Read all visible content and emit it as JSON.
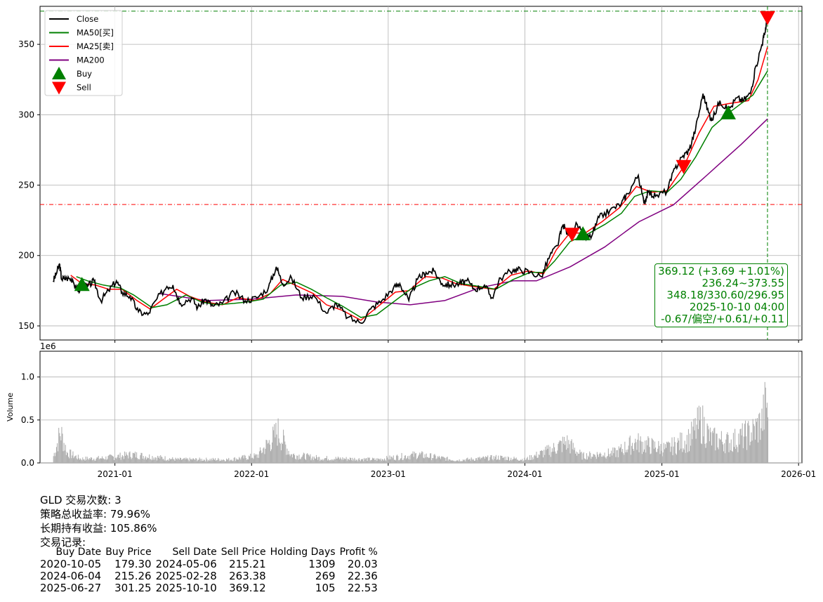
{
  "chart_data": [
    {
      "type": "line",
      "panel": "price",
      "ylim": [
        140,
        377
      ],
      "yticks": [
        150,
        200,
        250,
        300,
        350
      ],
      "grid": true,
      "legend_placement": "top-left",
      "legend": [
        "Close",
        "MA50[买]",
        "MA25[卖]",
        "MA200",
        "Buy",
        "Sell"
      ],
      "series": [
        {
          "name": "Close",
          "color": "#000000",
          "points": [
            [
              "2020-07-20",
              182
            ],
            [
              "2020-07-27",
              186
            ],
            [
              "2020-08-06",
              194
            ],
            [
              "2020-08-12",
              183
            ],
            [
              "2020-08-25",
              184
            ],
            [
              "2020-09-10",
              183
            ],
            [
              "2020-09-25",
              174
            ],
            [
              "2020-10-05",
              179
            ],
            [
              "2020-10-20",
              178
            ],
            [
              "2020-11-06",
              182
            ],
            [
              "2020-11-24",
              168
            ],
            [
              "2020-12-15",
              175
            ],
            [
              "2021-01-05",
              182
            ],
            [
              "2021-01-20",
              174
            ],
            [
              "2021-02-10",
              171
            ],
            [
              "2021-03-05",
              160
            ],
            [
              "2021-03-30",
              158
            ],
            [
              "2021-04-20",
              168
            ],
            [
              "2021-05-20",
              178
            ],
            [
              "2021-06-05",
              179
            ],
            [
              "2021-06-25",
              166
            ],
            [
              "2021-07-25",
              170
            ],
            [
              "2021-08-10",
              163
            ],
            [
              "2021-08-30",
              169
            ],
            [
              "2021-09-20",
              164
            ],
            [
              "2021-10-15",
              166
            ],
            [
              "2021-11-15",
              174
            ],
            [
              "2021-12-15",
              168
            ],
            [
              "2022-01-15",
              170
            ],
            [
              "2022-02-15",
              177
            ],
            [
              "2022-03-08",
              192
            ],
            [
              "2022-03-25",
              180
            ],
            [
              "2022-04-18",
              184
            ],
            [
              "2022-05-15",
              170
            ],
            [
              "2022-06-15",
              172
            ],
            [
              "2022-07-20",
              159
            ],
            [
              "2022-08-15",
              166
            ],
            [
              "2022-09-15",
              156
            ],
            [
              "2022-10-20",
              152
            ],
            [
              "2022-11-15",
              162
            ],
            [
              "2022-12-15",
              168
            ],
            [
              "2023-01-15",
              177
            ],
            [
              "2023-02-01",
              180
            ],
            [
              "2023-02-25",
              168
            ],
            [
              "2023-03-20",
              183
            ],
            [
              "2023-04-12",
              188
            ],
            [
              "2023-05-03",
              189
            ],
            [
              "2023-05-25",
              180
            ],
            [
              "2023-06-15",
              179
            ],
            [
              "2023-07-10",
              180
            ],
            [
              "2023-07-30",
              182
            ],
            [
              "2023-08-20",
              176
            ],
            [
              "2023-09-15",
              179
            ],
            [
              "2023-10-05",
              170
            ],
            [
              "2023-10-28",
              184
            ],
            [
              "2023-12-01",
              190
            ],
            [
              "2023-12-20",
              190
            ],
            [
              "2024-01-15",
              188
            ],
            [
              "2024-02-14",
              185
            ],
            [
              "2024-03-08",
              200
            ],
            [
              "2024-03-28",
              207
            ],
            [
              "2024-04-12",
              222
            ],
            [
              "2024-04-25",
              215
            ],
            [
              "2024-05-20",
              222
            ],
            [
              "2024-06-07",
              212
            ],
            [
              "2024-06-28",
              214
            ],
            [
              "2024-07-17",
              227
            ],
            [
              "2024-08-15",
              232
            ],
            [
              "2024-09-15",
              237
            ],
            [
              "2024-10-01",
              244
            ],
            [
              "2024-10-30",
              257
            ],
            [
              "2024-11-14",
              237
            ],
            [
              "2024-11-25",
              245
            ],
            [
              "2024-12-15",
              242
            ],
            [
              "2025-01-15",
              246
            ],
            [
              "2025-02-05",
              262
            ],
            [
              "2025-02-24",
              270
            ],
            [
              "2025-03-15",
              275
            ],
            [
              "2025-04-01",
              290
            ],
            [
              "2025-04-21",
              315
            ],
            [
              "2025-05-05",
              302
            ],
            [
              "2025-05-15",
              296
            ],
            [
              "2025-06-05",
              310
            ],
            [
              "2025-06-27",
              303
            ],
            [
              "2025-07-20",
              312
            ],
            [
              "2025-08-05",
              310
            ],
            [
              "2025-08-25",
              315
            ],
            [
              "2025-09-10",
              335
            ],
            [
              "2025-09-25",
              350
            ],
            [
              "2025-10-03",
              358
            ],
            [
              "2025-10-10",
              369.12
            ]
          ]
        },
        {
          "name": "MA50[买]",
          "color": "#008000",
          "points": [
            [
              "2020-09-20",
              185
            ],
            [
              "2020-10-20",
              182
            ],
            [
              "2020-12-01",
              179
            ],
            [
              "2021-01-15",
              177
            ],
            [
              "2021-02-20",
              172
            ],
            [
              "2021-04-10",
              163
            ],
            [
              "2021-05-20",
              165
            ],
            [
              "2021-07-10",
              172
            ],
            [
              "2021-08-20",
              167
            ],
            [
              "2021-10-01",
              165
            ],
            [
              "2021-11-15",
              166
            ],
            [
              "2021-12-20",
              167
            ],
            [
              "2022-02-01",
              169
            ],
            [
              "2022-03-20",
              179
            ],
            [
              "2022-05-01",
              181
            ],
            [
              "2022-06-10",
              176
            ],
            [
              "2022-07-20",
              170
            ],
            [
              "2022-09-01",
              164
            ],
            [
              "2022-10-20",
              156
            ],
            [
              "2022-12-01",
              158
            ],
            [
              "2023-01-15",
              167
            ],
            [
              "2023-03-01",
              176
            ],
            [
              "2023-04-20",
              182
            ],
            [
              "2023-06-01",
              185
            ],
            [
              "2023-07-15",
              180
            ],
            [
              "2023-09-01",
              178
            ],
            [
              "2023-10-15",
              176
            ],
            [
              "2023-12-01",
              183
            ],
            [
              "2024-01-15",
              188
            ],
            [
              "2024-02-20",
              188
            ],
            [
              "2024-03-20",
              196
            ],
            [
              "2024-05-01",
              210
            ],
            [
              "2024-06-15",
              215
            ],
            [
              "2024-08-01",
              222
            ],
            [
              "2024-09-15",
              230
            ],
            [
              "2024-10-20",
              242
            ],
            [
              "2024-12-01",
              246
            ],
            [
              "2025-01-15",
              245
            ],
            [
              "2025-02-20",
              254
            ],
            [
              "2025-04-01",
              270
            ],
            [
              "2025-05-15",
              291
            ],
            [
              "2025-06-27",
              301
            ],
            [
              "2025-08-01",
              308
            ],
            [
              "2025-09-01",
              314
            ],
            [
              "2025-10-10",
              331
            ]
          ]
        },
        {
          "name": "MA25[卖]",
          "color": "#ff0000",
          "points": [
            [
              "2020-09-05",
              186
            ],
            [
              "2020-10-05",
              180
            ],
            [
              "2020-11-10",
              179
            ],
            [
              "2020-12-15",
              176
            ],
            [
              "2021-01-20",
              176
            ],
            [
              "2021-03-01",
              168
            ],
            [
              "2021-04-05",
              162
            ],
            [
              "2021-05-10",
              169
            ],
            [
              "2021-06-15",
              176
            ],
            [
              "2021-07-20",
              171
            ],
            [
              "2021-08-30",
              167
            ],
            [
              "2021-10-15",
              165
            ],
            [
              "2021-11-25",
              170
            ],
            [
              "2022-01-10",
              168
            ],
            [
              "2022-02-20",
              173
            ],
            [
              "2022-03-25",
              183
            ],
            [
              "2022-05-05",
              178
            ],
            [
              "2022-06-15",
              173
            ],
            [
              "2022-07-20",
              165
            ],
            [
              "2022-09-01",
              161
            ],
            [
              "2022-10-20",
              154
            ],
            [
              "2022-12-01",
              163
            ],
            [
              "2023-01-20",
              174
            ],
            [
              "2023-02-25",
              175
            ],
            [
              "2023-04-10",
              185
            ],
            [
              "2023-05-25",
              184
            ],
            [
              "2023-07-01",
              180
            ],
            [
              "2023-08-15",
              178
            ],
            [
              "2023-10-10",
              176
            ],
            [
              "2023-11-25",
              186
            ],
            [
              "2024-01-10",
              189
            ],
            [
              "2024-02-20",
              187
            ],
            [
              "2024-03-25",
              204
            ],
            [
              "2024-04-30",
              216
            ],
            [
              "2024-06-10",
              216
            ],
            [
              "2024-07-25",
              224
            ],
            [
              "2024-09-10",
              234
            ],
            [
              "2024-10-25",
              249
            ],
            [
              "2024-12-05",
              245
            ],
            [
              "2025-01-15",
              246
            ],
            [
              "2025-02-28",
              263
            ],
            [
              "2025-04-10",
              287
            ],
            [
              "2025-05-20",
              306
            ],
            [
              "2025-07-01",
              308
            ],
            [
              "2025-08-20",
              310
            ],
            [
              "2025-09-15",
              325
            ],
            [
              "2025-10-10",
              348
            ]
          ]
        },
        {
          "name": "MA200",
          "color": "#800080",
          "points": [
            [
              "2021-05-01",
              173
            ],
            [
              "2021-09-01",
              168
            ],
            [
              "2022-01-01",
              169
            ],
            [
              "2022-05-01",
              172
            ],
            [
              "2022-09-01",
              171
            ],
            [
              "2022-12-01",
              167
            ],
            [
              "2023-03-01",
              165
            ],
            [
              "2023-06-01",
              168
            ],
            [
              "2023-09-01",
              177
            ],
            [
              "2023-12-01",
              182
            ],
            [
              "2024-02-01",
              182
            ],
            [
              "2024-05-01",
              192
            ],
            [
              "2024-08-01",
              206
            ],
            [
              "2024-11-01",
              224
            ],
            [
              "2025-02-01",
              236
            ],
            [
              "2025-05-01",
              257
            ],
            [
              "2025-08-01",
              279
            ],
            [
              "2025-10-10",
              297
            ]
          ]
        }
      ],
      "buy_points": [
        [
          "2020-10-05",
          179.3
        ],
        [
          "2024-06-04",
          215.26
        ],
        [
          "2025-06-27",
          301.25
        ]
      ],
      "sell_points": [
        [
          "2024-05-06",
          215.21
        ],
        [
          "2025-02-28",
          263.38
        ],
        [
          "2025-10-10",
          369.12
        ]
      ],
      "hlines": [
        {
          "y": 373.55,
          "color": "#008000"
        },
        {
          "y": 236.24,
          "color": "#ff0000"
        }
      ],
      "vline": {
        "x": "2025-10-10",
        "color": "#008000"
      },
      "annotation": [
        "369.12 (+3.69 +1.01%)",
        "236.24~373.55",
        "348.18/330.60/296.95",
        "2025-10-10 04:00",
        "-0.67/偏空/+0.61/+0.11"
      ]
    },
    {
      "type": "bar",
      "panel": "volume",
      "ylabel": "Volume",
      "scale_label": "1e6",
      "ylim": [
        0,
        1.3
      ],
      "yticks": [
        0.0,
        0.5,
        1.0
      ],
      "xlim": [
        "2020-06-15",
        "2026-01-10"
      ],
      "xticks": [
        "2021-01",
        "2022-01",
        "2023-01",
        "2024-01",
        "2025-01",
        "2026-01"
      ],
      "bar_color": "#b0b0b0",
      "volume_profile_millions": [
        [
          "2020-07-20",
          0.1
        ],
        [
          "2020-08-08",
          0.45
        ],
        [
          "2020-08-25",
          0.15
        ],
        [
          "2020-10-01",
          0.06
        ],
        [
          "2020-12-01",
          0.07
        ],
        [
          "2021-02-15",
          0.12
        ],
        [
          "2021-06-15",
          0.05
        ],
        [
          "2021-11-01",
          0.05
        ],
        [
          "2022-01-15",
          0.1
        ],
        [
          "2022-03-05",
          0.4
        ],
        [
          "2022-03-10",
          0.47
        ],
        [
          "2022-04-15",
          0.12
        ],
        [
          "2022-07-01",
          0.07
        ],
        [
          "2022-12-01",
          0.05
        ],
        [
          "2023-03-20",
          0.12
        ],
        [
          "2023-07-01",
          0.04
        ],
        [
          "2023-10-20",
          0.08
        ],
        [
          "2024-01-01",
          0.05
        ],
        [
          "2024-03-15",
          0.2
        ],
        [
          "2024-04-20",
          0.3
        ],
        [
          "2024-06-01",
          0.1
        ],
        [
          "2024-09-01",
          0.15
        ],
        [
          "2024-10-20",
          0.3
        ],
        [
          "2025-01-10",
          0.2
        ],
        [
          "2025-03-15",
          0.35
        ],
        [
          "2025-04-15",
          0.6
        ],
        [
          "2025-05-10",
          0.35
        ],
        [
          "2025-07-01",
          0.3
        ],
        [
          "2025-09-01",
          0.45
        ],
        [
          "2025-09-25",
          0.6
        ],
        [
          "2025-10-06",
          0.9
        ],
        [
          "2025-10-10",
          0.78
        ]
      ]
    }
  ],
  "stats": {
    "trades_line": "GLD 交易次数: 3",
    "strategy_line": "策略总收益率: 79.96%",
    "hold_line": "长期持有收益: 105.86%",
    "records_line": "交易记录:"
  },
  "trades": {
    "headers": [
      "Buy Date",
      "Buy Price",
      "Sell Date",
      "Sell Price",
      "Holding Days",
      "Profit %"
    ],
    "rows": [
      [
        "2020-10-05",
        "179.30",
        "2024-05-06",
        "215.21",
        "1309",
        "20.03"
      ],
      [
        "2024-06-04",
        "215.26",
        "2025-02-28",
        "263.38",
        "269",
        "22.36"
      ],
      [
        "2025-06-27",
        "301.25",
        "2025-10-10",
        "369.12",
        "105",
        "22.53"
      ]
    ]
  }
}
